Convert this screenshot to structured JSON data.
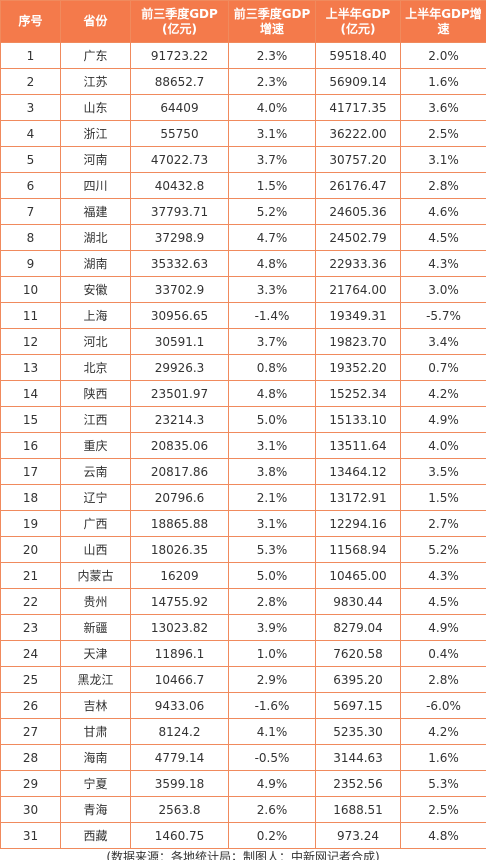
{
  "table": {
    "header": [
      "序号",
      "省份",
      "前三季度GDP(亿元)",
      "前三季度GDP增速",
      "上半年GDP(亿元)",
      "上半年GDP增速"
    ],
    "rows": [
      [
        "1",
        "广东",
        "91723.22",
        "2.3%",
        "59518.40",
        "2.0%"
      ],
      [
        "2",
        "江苏",
        "88652.7",
        "2.3%",
        "56909.14",
        "1.6%"
      ],
      [
        "3",
        "山东",
        "64409",
        "4.0%",
        "41717.35",
        "3.6%"
      ],
      [
        "4",
        "浙江",
        "55750",
        "3.1%",
        "36222.00",
        "2.5%"
      ],
      [
        "5",
        "河南",
        "47022.73",
        "3.7%",
        "30757.20",
        "3.1%"
      ],
      [
        "6",
        "四川",
        "40432.8",
        "1.5%",
        "26176.47",
        "2.8%"
      ],
      [
        "7",
        "福建",
        "37793.71",
        "5.2%",
        "24605.36",
        "4.6%"
      ],
      [
        "8",
        "湖北",
        "37298.9",
        "4.7%",
        "24502.79",
        "4.5%"
      ],
      [
        "9",
        "湖南",
        "35332.63",
        "4.8%",
        "22933.36",
        "4.3%"
      ],
      [
        "10",
        "安徽",
        "33702.9",
        "3.3%",
        "21764.00",
        "3.0%"
      ],
      [
        "11",
        "上海",
        "30956.65",
        "-1.4%",
        "19349.31",
        "-5.7%"
      ],
      [
        "12",
        "河北",
        "30591.1",
        "3.7%",
        "19823.70",
        "3.4%"
      ],
      [
        "13",
        "北京",
        "29926.3",
        "0.8%",
        "19352.20",
        "0.7%"
      ],
      [
        "14",
        "陕西",
        "23501.97",
        "4.8%",
        "15252.34",
        "4.2%"
      ],
      [
        "15",
        "江西",
        "23214.3",
        "5.0%",
        "15133.10",
        "4.9%"
      ],
      [
        "16",
        "重庆",
        "20835.06",
        "3.1%",
        "13511.64",
        "4.0%"
      ],
      [
        "17",
        "云南",
        "20817.86",
        "3.8%",
        "13464.12",
        "3.5%"
      ],
      [
        "18",
        "辽宁",
        "20796.6",
        "2.1%",
        "13172.91",
        "1.5%"
      ],
      [
        "19",
        "广西",
        "18865.88",
        "3.1%",
        "12294.16",
        "2.7%"
      ],
      [
        "20",
        "山西",
        "18026.35",
        "5.3%",
        "11568.94",
        "5.2%"
      ],
      [
        "21",
        "内蒙古",
        "16209",
        "5.0%",
        "10465.00",
        "4.3%"
      ],
      [
        "22",
        "贵州",
        "14755.92",
        "2.8%",
        "9830.44",
        "4.5%"
      ],
      [
        "23",
        "新疆",
        "13023.82",
        "3.9%",
        "8279.04",
        "4.9%"
      ],
      [
        "24",
        "天津",
        "11896.1",
        "1.0%",
        "7620.58",
        "0.4%"
      ],
      [
        "25",
        "黑龙江",
        "10466.7",
        "2.9%",
        "6395.20",
        "2.8%"
      ],
      [
        "26",
        "吉林",
        "9433.06",
        "-1.6%",
        "5697.15",
        "-6.0%"
      ],
      [
        "27",
        "甘肃",
        "8124.2",
        "4.1%",
        "5235.30",
        "4.2%"
      ],
      [
        "28",
        "海南",
        "4779.14",
        "-0.5%",
        "3144.63",
        "1.6%"
      ],
      [
        "29",
        "宁夏",
        "3599.18",
        "4.9%",
        "2352.56",
        "5.3%"
      ],
      [
        "30",
        "青海",
        "2563.8",
        "2.6%",
        "1688.51",
        "2.5%"
      ],
      [
        "31",
        "西藏",
        "1460.75",
        "0.2%",
        "973.24",
        "4.8%"
      ]
    ]
  },
  "footer": "(数据来源：各地统计局；制图人：中新网记者合成)"
}
